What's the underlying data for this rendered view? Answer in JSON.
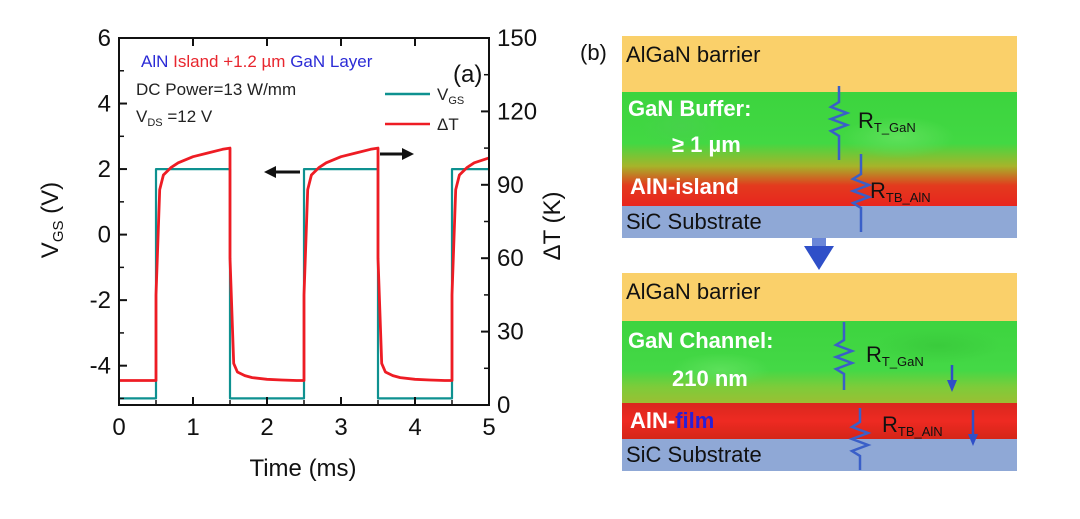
{
  "panel_a": {
    "label": "(a)",
    "title_parts": [
      {
        "text": "AlN ",
        "color": "#2b2bd6"
      },
      {
        "text": "Island ",
        "color": "#e8262e"
      },
      {
        "text": "+1.2 µm ",
        "color": "#e8262e"
      },
      {
        "text": "GaN Layer",
        "color": "#2b2bd6"
      }
    ],
    "annotation_power": "DC Power=13 W/mm",
    "annotation_vds_prefix": "V",
    "annotation_vds_sub": "DS",
    "annotation_vds_value": " =12 V"
  },
  "panel_b": {
    "label": "(b)",
    "top": {
      "barrier": "AlGaN barrier",
      "buffer_line1": "GaN Buffer:",
      "buffer_line2": "≥ 1 µm",
      "aln": "AlN-island",
      "substrate": "SiC Substrate",
      "r1_main": "R",
      "r1_sub": "T_GaN",
      "r2_main": "R",
      "r2_sub": "TB_AlN"
    },
    "bottom": {
      "barrier": "AlGaN barrier",
      "channel_line1": "GaN Channel:",
      "channel_line2": "210 nm",
      "aln_prefix": "AlN-",
      "aln_suffix": "film",
      "substrate": "SiC Substrate",
      "r1_main": "R",
      "r1_sub": "T_GaN",
      "r2_main": "R",
      "r2_sub": "TB_AlN"
    },
    "colors": {
      "barrier": "#fad06a",
      "gan": "#42d843",
      "aln": "#e8261e",
      "substrate": "#8fa8d6",
      "resistor": "#3a5fc8",
      "arrow": "#2f4fc8"
    }
  },
  "chart_data": {
    "type": "line",
    "xlabel": "Time (ms)",
    "ylabel_left_main": "V",
    "ylabel_left_sub": "GS",
    "ylabel_left_unit": " (V)",
    "ylabel_right": "ΔT (K)",
    "xlim": [
      0,
      5
    ],
    "ylim_left": [
      -5.2,
      6
    ],
    "ylim_right": [
      0,
      150
    ],
    "xticks": [
      0,
      1,
      2,
      3,
      4,
      5
    ],
    "yticks_left": [
      -4,
      -2,
      0,
      2,
      4,
      6
    ],
    "yticks_right": [
      0,
      30,
      60,
      90,
      120,
      150
    ],
    "legend": [
      {
        "main": "V",
        "sub": "GS",
        "color": "#0e9190"
      },
      {
        "main": "ΔT",
        "sub": "",
        "color": "#ee1c24"
      }
    ],
    "series": [
      {
        "name": "VGS",
        "axis": "left",
        "color": "#0e9190",
        "x": [
          0.0,
          0.5,
          0.5,
          1.5,
          1.5,
          2.5,
          2.5,
          3.5,
          3.5,
          4.5,
          4.5,
          5.0
        ],
        "y": [
          -5.0,
          -5.0,
          2.0,
          2.0,
          -5.0,
          -5.0,
          2.0,
          2.0,
          -5.0,
          -5.0,
          2.0,
          2.0
        ]
      },
      {
        "name": "ΔT",
        "axis": "right",
        "color": "#ee1c24",
        "x": [
          0.0,
          0.5,
          0.5,
          0.55,
          0.6,
          0.7,
          0.8,
          1.0,
          1.2,
          1.4,
          1.5,
          1.5,
          1.55,
          1.6,
          1.7,
          1.8,
          2.0,
          2.2,
          2.4,
          2.5,
          2.5,
          2.55,
          2.6,
          2.7,
          2.8,
          3.0,
          3.2,
          3.4,
          3.5,
          3.5,
          3.55,
          3.6,
          3.7,
          3.8,
          4.0,
          4.2,
          4.4,
          4.5,
          4.5,
          4.55,
          4.6,
          4.7,
          4.8,
          5.0
        ],
        "y": [
          10.0,
          10.0,
          45.0,
          88.0,
          94.0,
          97.0,
          99.0,
          101.5,
          103.0,
          104.5,
          105.0,
          60.0,
          17.0,
          13.5,
          12.0,
          11.2,
          10.5,
          10.2,
          10.0,
          10.0,
          45.0,
          88.0,
          94.0,
          97.0,
          99.0,
          101.5,
          103.0,
          104.5,
          105.0,
          60.0,
          17.0,
          13.5,
          12.0,
          11.2,
          10.5,
          10.2,
          10.0,
          10.0,
          45.0,
          88.0,
          94.0,
          97.0,
          99.0,
          101.0
        ]
      }
    ]
  }
}
